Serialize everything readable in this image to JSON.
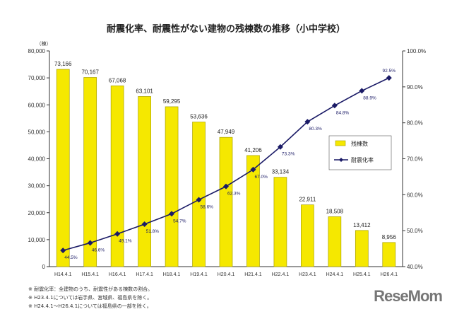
{
  "chart_data": {
    "type": "bar+line",
    "title": "耐震化率、耐震性がない建物の残棟数の推移（小中学校）",
    "ylabel": "（棟）",
    "categories": [
      "H14.4.1",
      "H15.4.1",
      "H16.4.1",
      "H17.4.1",
      "H18.4.1",
      "H19.4.1",
      "H20.4.1",
      "H21.4.1",
      "H22.4.1",
      "H23.4.1",
      "H24.4.1",
      "H25.4.1",
      "H26.4.1"
    ],
    "series": [
      {
        "name": "残棟数",
        "type": "bar",
        "axis": "left",
        "color": "#f5e800",
        "values": [
          73166,
          70167,
          67068,
          63101,
          59295,
          53636,
          47949,
          41206,
          33134,
          22911,
          18508,
          13412,
          8956
        ],
        "labels": [
          "73,166",
          "70,167",
          "67,068",
          "63,101",
          "59,295",
          "53,636",
          "47,949",
          "41,206",
          "33,134",
          "22,911",
          "18,508",
          "13,412",
          "8,956"
        ]
      },
      {
        "name": "耐震化率",
        "type": "line",
        "axis": "right",
        "color": "#1a1a66",
        "values": [
          44.5,
          46.6,
          49.1,
          51.8,
          54.7,
          58.6,
          62.3,
          67.0,
          73.3,
          80.3,
          84.8,
          88.9,
          92.5
        ],
        "labels": [
          "44.5%",
          "46.6%",
          "49.1%",
          "51.8%",
          "54.7%",
          "58.6%",
          "62.3%",
          "67.0%",
          "73.3%",
          "80.3%",
          "84.8%",
          "88.9%",
          "92.5%"
        ]
      }
    ],
    "ylim": [
      0,
      80000
    ],
    "y2lim": [
      40,
      100
    ],
    "yticks": [
      "0",
      "10,000",
      "20,000",
      "30,000",
      "40,000",
      "50,000",
      "60,000",
      "70,000",
      "80,000"
    ],
    "y2ticks": [
      "40.0%",
      "50.0%",
      "60.0%",
      "70.0%",
      "80.0%",
      "90.0%",
      "100.0%"
    ],
    "legend": "right-middle",
    "grid": false
  },
  "notes": [
    "※ 耐震化率：全建物のうち、耐震性がある棟数の割合。",
    "※ H23.4.1については岩手県、宮城県、福島県を除く。",
    "※ H24.4.1～H26.4.1については福島県の一部を除く。"
  ],
  "logo": "ReseMom"
}
